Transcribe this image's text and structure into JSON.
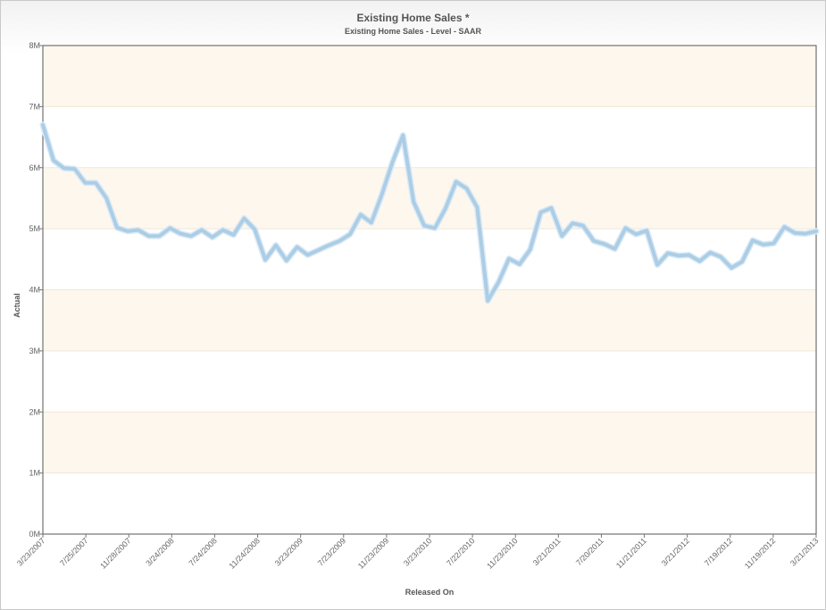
{
  "chart_data": {
    "type": "line",
    "title": "Existing Home Sales *",
    "subtitle": "Existing Home Sales - Level - SAAR",
    "xlabel": "Released On",
    "ylabel": "Actual",
    "ylim": [
      0,
      8000000
    ],
    "y_ticks": [
      {
        "value": 0,
        "label": "0M"
      },
      {
        "value": 1000000,
        "label": "1M"
      },
      {
        "value": 2000000,
        "label": "2M"
      },
      {
        "value": 3000000,
        "label": "3M"
      },
      {
        "value": 4000000,
        "label": "4M"
      },
      {
        "value": 5000000,
        "label": "5M"
      },
      {
        "value": 6000000,
        "label": "6M"
      },
      {
        "value": 7000000,
        "label": "7M"
      },
      {
        "value": 8000000,
        "label": "8M"
      }
    ],
    "x_tick_labels": [
      "3/23/2007",
      "7/25/2007",
      "11/28/2007",
      "3/24/2008",
      "7/24/2008",
      "11/24/2008",
      "3/23/2009",
      "7/23/2009",
      "11/23/2009",
      "3/23/2010",
      "7/22/2010",
      "11/23/2010",
      "3/21/2011",
      "7/20/2011",
      "11/21/2011",
      "3/21/2012",
      "7/19/2012",
      "11/19/2012",
      "3/21/2013"
    ],
    "grid": true,
    "band_color": "#fdf7ee",
    "grid_color": "#efe7d8",
    "line_color": "#abcde6",
    "series": [
      {
        "values": [
          6700000,
          6120000,
          5990000,
          5980000,
          5750000,
          5750000,
          5500000,
          5020000,
          4960000,
          4980000,
          4880000,
          4880000,
          5010000,
          4920000,
          4880000,
          4980000,
          4860000,
          4980000,
          4900000,
          5170000,
          4990000,
          4490000,
          4730000,
          4480000,
          4700000,
          4570000,
          4650000,
          4730000,
          4800000,
          4910000,
          5230000,
          5100000,
          5560000,
          6090000,
          6530000,
          5440000,
          5050000,
          5010000,
          5330000,
          5770000,
          5660000,
          5350000,
          3820000,
          4120000,
          4510000,
          4420000,
          4660000,
          5270000,
          5340000,
          4880000,
          5090000,
          5050000,
          4800000,
          4750000,
          4670000,
          5010000,
          4910000,
          4970000,
          4410000,
          4600000,
          4560000,
          4570000,
          4470000,
          4610000,
          4540000,
          4360000,
          4460000,
          4810000,
          4740000,
          4760000,
          5030000,
          4930000,
          4920000,
          4960000
        ]
      }
    ]
  }
}
